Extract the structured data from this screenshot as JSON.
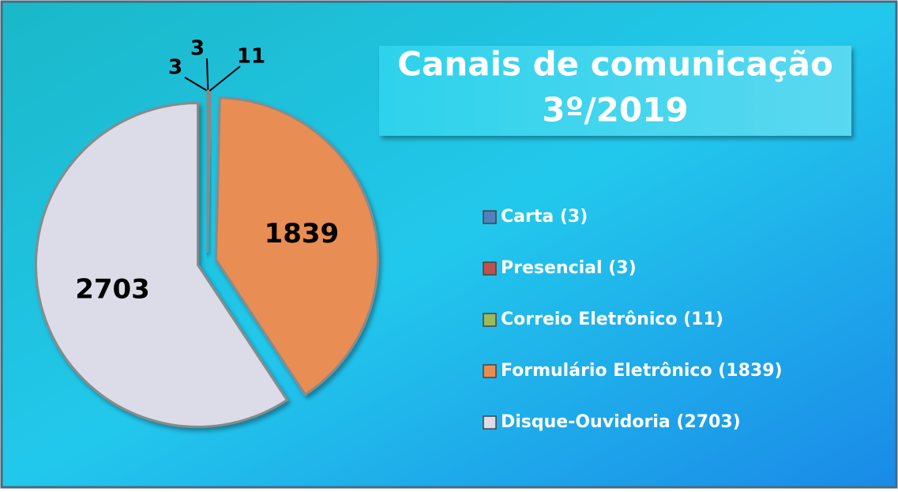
{
  "chart_data": {
    "type": "pie",
    "title": [
      "Canais de comunicação",
      "3º/2019"
    ],
    "categories": [
      "Carta (3)",
      "Presencial (3)",
      "Correio Eletrônico (11)",
      "Formulário Eletrônico (1839)",
      "Disque-Ouvidoria (2703)"
    ],
    "values": [
      3,
      3,
      11,
      1839,
      2703
    ],
    "colors": [
      "#4f81bd",
      "#c0504d",
      "#9bbb59",
      "#e88d52",
      "#dcdce8"
    ],
    "legend": "right"
  }
}
